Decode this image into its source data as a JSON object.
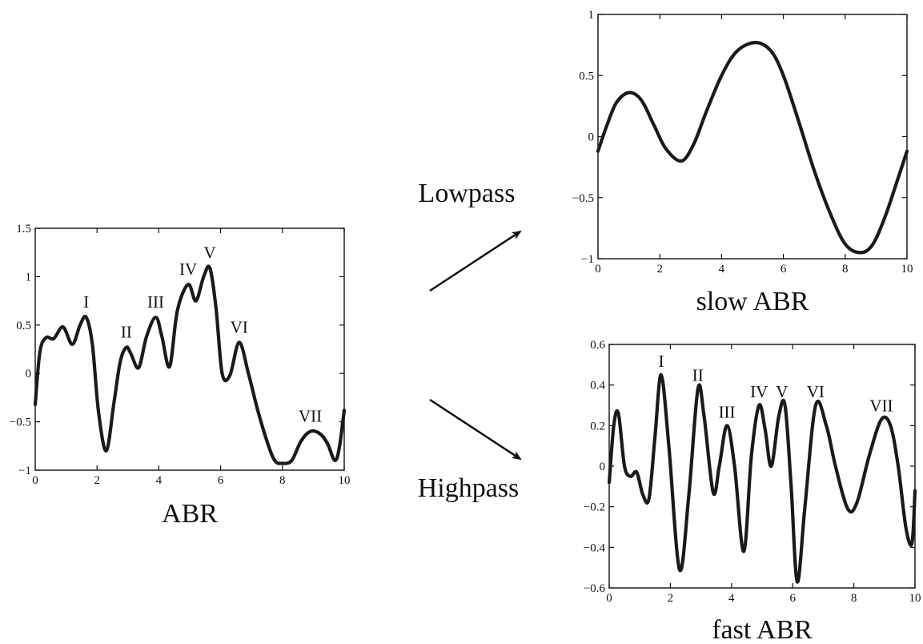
{
  "chart_data": [
    {
      "type": "line",
      "id": "abr",
      "title": "",
      "xlabel": "ABR",
      "ylabel": "",
      "xlim": [
        0,
        10
      ],
      "ylim": [
        -1,
        1.5
      ],
      "xticks": [
        0,
        2,
        4,
        6,
        8,
        10
      ],
      "yticks": [
        -1,
        -0.5,
        0,
        0.5,
        1,
        1.5
      ],
      "xtick_labels": [
        "0",
        "2",
        "4",
        "6",
        "8",
        "10"
      ],
      "ytick_labels": [
        "−1",
        "−0.5",
        "0",
        "0.5",
        "1",
        "1.5"
      ],
      "grid": false,
      "series": [
        {
          "x": [
            0,
            0.15,
            0.35,
            0.6,
            0.9,
            1.2,
            1.45,
            1.65,
            1.85,
            2.05,
            2.3,
            2.55,
            2.75,
            2.95,
            3.1,
            3.35,
            3.6,
            3.9,
            4.1,
            4.35,
            4.6,
            4.95,
            5.2,
            5.45,
            5.65,
            5.85,
            6.05,
            6.3,
            6.6,
            6.9,
            7.2,
            7.5,
            7.75,
            8.0,
            8.3,
            8.6,
            8.9,
            9.2,
            9.45,
            9.7,
            9.85,
            10.0
          ],
          "y": [
            -0.32,
            0.22,
            0.37,
            0.36,
            0.48,
            0.3,
            0.5,
            0.58,
            0.3,
            -0.4,
            -0.8,
            -0.3,
            0.12,
            0.27,
            0.2,
            0.06,
            0.38,
            0.58,
            0.38,
            0.07,
            0.65,
            0.92,
            0.75,
            1.0,
            1.09,
            0.68,
            0.0,
            -0.02,
            0.32,
            0.0,
            -0.38,
            -0.7,
            -0.9,
            -0.93,
            -0.9,
            -0.7,
            -0.6,
            -0.62,
            -0.72,
            -0.9,
            -0.75,
            -0.38
          ]
        }
      ],
      "annotations": [
        {
          "text": "I",
          "x": 1.65,
          "y": 0.58
        },
        {
          "text": "II",
          "x": 2.95,
          "y": 0.27
        },
        {
          "text": "III",
          "x": 3.9,
          "y": 0.58
        },
        {
          "text": "IV",
          "x": 4.95,
          "y": 0.92
        },
        {
          "text": "V",
          "x": 5.65,
          "y": 1.09
        },
        {
          "text": "VI",
          "x": 6.6,
          "y": 0.32
        },
        {
          "text": "VII",
          "x": 8.9,
          "y": -0.6
        }
      ]
    },
    {
      "type": "line",
      "id": "slow-abr",
      "title": "",
      "xlabel": "slow ABR",
      "ylabel": "",
      "xlim": [
        0,
        10
      ],
      "ylim": [
        -1,
        1
      ],
      "xticks": [
        0,
        2,
        4,
        6,
        8,
        10
      ],
      "yticks": [
        -1,
        -0.5,
        0,
        0.5,
        1
      ],
      "xtick_labels": [
        "0",
        "2",
        "4",
        "6",
        "8",
        "10"
      ],
      "ytick_labels": [
        "−1",
        "−0.5",
        "0",
        "0.5",
        "1"
      ],
      "grid": false,
      "series": [
        {
          "x": [
            0,
            0.3,
            0.6,
            1.0,
            1.4,
            1.8,
            2.2,
            2.7,
            3.1,
            3.5,
            4.0,
            4.5,
            5.1,
            5.6,
            6.0,
            6.5,
            7.0,
            7.5,
            8.0,
            8.5,
            8.9,
            9.3,
            9.7,
            10.0
          ],
          "y": [
            -0.12,
            0.1,
            0.28,
            0.36,
            0.3,
            0.1,
            -0.1,
            -0.2,
            -0.06,
            0.2,
            0.5,
            0.7,
            0.77,
            0.7,
            0.5,
            0.12,
            -0.28,
            -0.62,
            -0.88,
            -0.95,
            -0.88,
            -0.65,
            -0.35,
            -0.12
          ]
        }
      ],
      "annotations": []
    },
    {
      "type": "line",
      "id": "fast-abr",
      "title": "",
      "xlabel": "fast ABR",
      "ylabel": "",
      "xlim": [
        0,
        10
      ],
      "ylim": [
        -0.6,
        0.6
      ],
      "xticks": [
        0,
        2,
        4,
        6,
        8,
        10
      ],
      "yticks": [
        -0.6,
        -0.4,
        -0.2,
        0,
        0.2,
        0.4,
        0.6
      ],
      "xtick_labels": [
        "0",
        "2",
        "4",
        "6",
        "8",
        "10"
      ],
      "ytick_labels": [
        "−0.6",
        "−0.4",
        "−0.2",
        "0",
        "0.2",
        "0.4",
        "0.6"
      ],
      "grid": false,
      "series": [
        {
          "x": [
            0,
            0.15,
            0.3,
            0.5,
            0.7,
            0.9,
            1.1,
            1.3,
            1.5,
            1.7,
            1.95,
            2.3,
            2.6,
            2.9,
            3.1,
            3.4,
            3.6,
            3.85,
            4.1,
            4.4,
            4.65,
            4.9,
            5.1,
            5.3,
            5.55,
            5.75,
            5.95,
            6.15,
            6.4,
            6.75,
            7.1,
            7.4,
            7.8,
            8.1,
            8.5,
            8.9,
            9.2,
            9.45,
            9.7,
            9.9,
            10.0
          ],
          "y": [
            -0.08,
            0.2,
            0.26,
            0.0,
            -0.05,
            -0.03,
            -0.14,
            -0.16,
            0.15,
            0.45,
            0.1,
            -0.51,
            -0.15,
            0.38,
            0.25,
            -0.13,
            0.0,
            0.2,
            0.0,
            -0.42,
            0.05,
            0.3,
            0.18,
            0.0,
            0.25,
            0.3,
            -0.1,
            -0.57,
            -0.2,
            0.3,
            0.2,
            0.0,
            -0.21,
            -0.18,
            0.05,
            0.23,
            0.2,
            0.0,
            -0.3,
            -0.38,
            -0.12
          ]
        }
      ],
      "annotations": [
        {
          "text": "I",
          "x": 1.7,
          "y": 0.45
        },
        {
          "text": "II",
          "x": 2.9,
          "y": 0.38
        },
        {
          "text": "III",
          "x": 3.85,
          "y": 0.2
        },
        {
          "text": "IV",
          "x": 4.9,
          "y": 0.3
        },
        {
          "text": "V",
          "x": 5.65,
          "y": 0.3
        },
        {
          "text": "VI",
          "x": 6.75,
          "y": 0.3
        },
        {
          "text": "VII",
          "x": 8.9,
          "y": 0.23
        }
      ]
    }
  ],
  "flow": {
    "lowpass_label": "Lowpass",
    "highpass_label": "Highpass"
  }
}
